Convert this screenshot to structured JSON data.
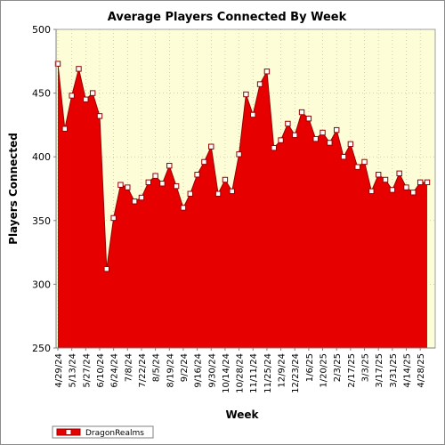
{
  "chart_data": {
    "type": "area",
    "title": "Average Players Connected By Week",
    "xlabel": "Week",
    "ylabel": "Players Connected",
    "ylim": [
      250,
      500
    ],
    "yticks": [
      250,
      300,
      350,
      400,
      450,
      500
    ],
    "x_tick_labels": [
      "4/29/24",
      "5/13/24",
      "5/27/24",
      "6/10/24",
      "6/24/24",
      "7/8/24",
      "7/22/24",
      "8/5/24",
      "8/19/24",
      "9/2/24",
      "9/16/24",
      "9/30/24",
      "10/14/24",
      "10/28/24",
      "11/11/24",
      "11/25/24",
      "12/9/24",
      "12/23/24",
      "1/6/25",
      "1/20/25",
      "2/3/25",
      "2/17/25",
      "3/3/25",
      "3/17/25",
      "3/31/25",
      "4/14/25",
      "4/28/25"
    ],
    "grid": true,
    "legend_position": "bottom-left",
    "colors": {
      "plot_background": "#fdfdd8",
      "area_fill": "#e60000",
      "area_edge": "#990000",
      "marker_fill": "#ffffff",
      "marker_edge": "#990000"
    },
    "series": [
      {
        "name": "DragonRealms",
        "x": [
          "4/29/24",
          "5/6/24",
          "5/13/24",
          "5/20/24",
          "5/27/24",
          "6/3/24",
          "6/10/24",
          "6/17/24",
          "6/24/24",
          "7/1/24",
          "7/8/24",
          "7/15/24",
          "7/22/24",
          "7/29/24",
          "8/5/24",
          "8/12/24",
          "8/19/24",
          "8/26/24",
          "9/2/24",
          "9/9/24",
          "9/16/24",
          "9/23/24",
          "9/30/24",
          "10/7/24",
          "10/14/24",
          "10/21/24",
          "10/28/24",
          "11/4/24",
          "11/11/24",
          "11/18/24",
          "11/25/24",
          "12/2/24",
          "12/9/24",
          "12/16/24",
          "12/23/24",
          "12/30/24",
          "1/6/25",
          "1/13/25",
          "1/20/25",
          "1/27/25",
          "2/3/25",
          "2/10/25",
          "2/17/25",
          "2/24/25",
          "3/3/25",
          "3/10/25",
          "3/17/25",
          "3/24/25",
          "3/31/25",
          "4/7/25",
          "4/14/25",
          "4/21/25",
          "4/28/25",
          "5/5/25"
        ],
        "values": [
          473,
          422,
          448,
          469,
          445,
          450,
          432,
          312,
          352,
          378,
          376,
          365,
          368,
          380,
          385,
          379,
          393,
          377,
          360,
          371,
          386,
          396,
          408,
          371,
          382,
          373,
          402,
          449,
          433,
          457,
          467,
          407,
          413,
          426,
          417,
          435,
          430,
          414,
          419,
          411,
          421,
          400,
          410,
          392,
          396,
          373,
          386,
          382,
          374,
          387,
          376,
          372,
          380,
          380
        ]
      }
    ]
  }
}
